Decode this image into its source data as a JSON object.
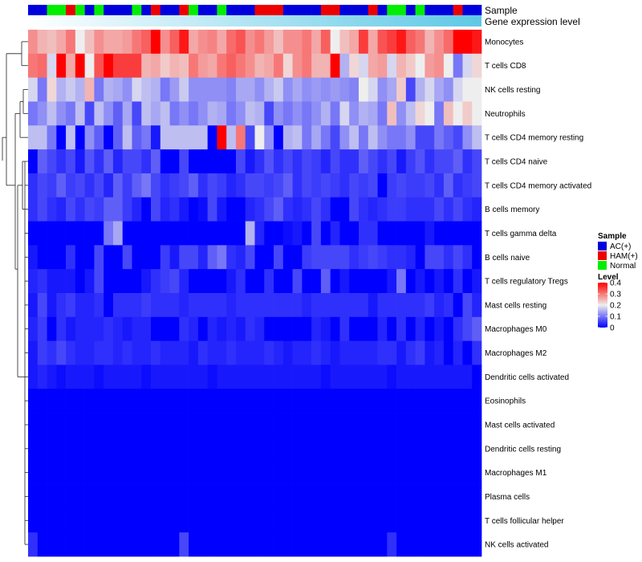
{
  "chart_data": {
    "type": "heatmap",
    "annotations": [
      {
        "name": "Sample"
      },
      {
        "name": "Gene expression level"
      }
    ],
    "sample_groups": [
      "AC(+)",
      "AC(+)",
      "Normal",
      "Normal",
      "HAM(+)",
      "Normal",
      "AC(+)",
      "Normal",
      "AC(+)",
      "AC(+)",
      "AC(+)",
      "Normal",
      "AC(+)",
      "HAM(+)",
      "AC(+)",
      "AC(+)",
      "HAM(+)",
      "Normal",
      "AC(+)",
      "AC(+)",
      "Normal",
      "AC(+)",
      "AC(+)",
      "AC(+)",
      "HAM(+)",
      "HAM(+)",
      "HAM(+)",
      "AC(+)",
      "AC(+)",
      "AC(+)",
      "AC(+)",
      "HAM(+)",
      "HAM(+)",
      "AC(+)",
      "AC(+)",
      "AC(+)",
      "HAM(+)",
      "AC(+)",
      "Normal",
      "Normal",
      "AC(+)",
      "Normal",
      "AC(+)",
      "AC(+)",
      "AC(+)",
      "HAM(+)",
      "AC(+)",
      "AC(+)"
    ],
    "rows": [
      {
        "name": "Monocytes",
        "values": [
          0.28,
          0.25,
          0.24,
          0.26,
          0.3,
          0.2,
          0.24,
          0.28,
          0.26,
          0.26,
          0.27,
          0.3,
          0.32,
          0.4,
          0.28,
          0.32,
          0.38,
          0.26,
          0.28,
          0.29,
          0.26,
          0.31,
          0.33,
          0.28,
          0.3,
          0.27,
          0.24,
          0.28,
          0.28,
          0.3,
          0.26,
          0.32,
          0.2,
          0.24,
          0.26,
          0.35,
          0.26,
          0.33,
          0.35,
          0.38,
          0.32,
          0.3,
          0.25,
          0.28,
          0.31,
          0.4,
          0.4,
          0.38
        ]
      },
      {
        "name": "T cells CD8",
        "values": [
          0.3,
          0.31,
          0.18,
          0.4,
          0.26,
          0.4,
          0.2,
          0.33,
          0.4,
          0.35,
          0.35,
          0.35,
          0.25,
          0.26,
          0.23,
          0.25,
          0.24,
          0.3,
          0.27,
          0.26,
          0.3,
          0.32,
          0.3,
          0.28,
          0.25,
          0.26,
          0.3,
          0.22,
          0.28,
          0.3,
          0.25,
          0.25,
          0.4,
          0.15,
          0.22,
          0.18,
          0.26,
          0.27,
          0.18,
          0.25,
          0.23,
          0.2,
          0.27,
          0.28,
          0.2,
          0.1,
          0.18,
          0.22
        ]
      },
      {
        "name": "NK cells resting",
        "values": [
          0.18,
          0.1,
          0.22,
          0.15,
          0.17,
          0.15,
          0.25,
          0.1,
          0.15,
          0.14,
          0.12,
          0.18,
          0.16,
          0.15,
          0.1,
          0.13,
          0.17,
          0.12,
          0.12,
          0.12,
          0.12,
          0.11,
          0.14,
          0.14,
          0.12,
          0.15,
          0.17,
          0.12,
          0.14,
          0.12,
          0.13,
          0.12,
          0.13,
          0.12,
          0.11,
          0.2,
          0.18,
          0.12,
          0.14,
          0.23,
          0.06,
          0.15,
          0.18,
          0.14,
          0.12,
          0.18,
          0.2,
          0.2
        ]
      },
      {
        "name": "Neutrophils",
        "values": [
          0.1,
          0.12,
          0.16,
          0.12,
          0.1,
          0.16,
          0.06,
          0.16,
          0.12,
          0.08,
          0.14,
          0.06,
          0.16,
          0.14,
          0.16,
          0.1,
          0.12,
          0.1,
          0.12,
          0.15,
          0.14,
          0.1,
          0.12,
          0.16,
          0.15,
          0.06,
          0.12,
          0.1,
          0.12,
          0.1,
          0.12,
          0.15,
          0.1,
          0.18,
          0.12,
          0.15,
          0.14,
          0.1,
          0.24,
          0.12,
          0.16,
          0.22,
          0.2,
          0.1,
          0.24,
          0.2,
          0.23,
          0.2
        ]
      },
      {
        "name": "T cells CD4 memory resting",
        "values": [
          0.16,
          0.16,
          0.1,
          0.0,
          0.16,
          0.0,
          0.12,
          0.08,
          0.0,
          0.08,
          0.16,
          0.08,
          0.1,
          0.02,
          0.16,
          0.16,
          0.16,
          0.16,
          0.16,
          0.0,
          0.4,
          0.16,
          0.3,
          0.06,
          0.2,
          0.12,
          0.0,
          0.15,
          0.16,
          0.1,
          0.14,
          0.1,
          0.06,
          0.12,
          0.16,
          0.1,
          0.16,
          0.12,
          0.1,
          0.1,
          0.12,
          0.06,
          0.06,
          0.1,
          0.08,
          0.06,
          0.12,
          0.16
        ]
      },
      {
        "name": "T cells CD4 naive",
        "values": [
          0.0,
          0.08,
          0.06,
          0.04,
          0.06,
          0.02,
          0.07,
          0.04,
          0.08,
          0.03,
          0.06,
          0.06,
          0.04,
          0.08,
          0.0,
          0.0,
          0.06,
          0.0,
          0.0,
          0.0,
          0.0,
          0.0,
          0.06,
          0.02,
          0.04,
          0.07,
          0.04,
          0.06,
          0.04,
          0.06,
          0.05,
          0.03,
          0.06,
          0.04,
          0.04,
          0.08,
          0.06,
          0.04,
          0.06,
          0.02,
          0.05,
          0.07,
          0.04,
          0.06,
          0.06,
          0.08,
          0.04,
          0.06
        ]
      },
      {
        "name": "T cells CD4 memory activated",
        "values": [
          0.04,
          0.06,
          0.05,
          0.08,
          0.05,
          0.06,
          0.04,
          0.06,
          0.03,
          0.08,
          0.05,
          0.08,
          0.1,
          0.06,
          0.04,
          0.05,
          0.06,
          0.08,
          0.04,
          0.06,
          0.05,
          0.03,
          0.04,
          0.06,
          0.06,
          0.05,
          0.06,
          0.08,
          0.04,
          0.06,
          0.05,
          0.06,
          0.05,
          0.04,
          0.06,
          0.05,
          0.06,
          0.0,
          0.05,
          0.06,
          0.05,
          0.05,
          0.06,
          0.04,
          0.08,
          0.04,
          0.05,
          0.06
        ]
      },
      {
        "name": "B cells memory",
        "values": [
          0.04,
          0.06,
          0.04,
          0.03,
          0.06,
          0.04,
          0.06,
          0.05,
          0.08,
          0.08,
          0.05,
          0.03,
          0.0,
          0.06,
          0.03,
          0.04,
          0.02,
          0.0,
          0.01,
          0.06,
          0.02,
          0.0,
          0.0,
          0.03,
          0.04,
          0.06,
          0.08,
          0.04,
          0.03,
          0.04,
          0.06,
          0.04,
          0.0,
          0.0,
          0.06,
          0.04,
          0.03,
          0.04,
          0.05,
          0.05,
          0.04,
          0.04,
          0.04,
          0.06,
          0.04,
          0.06,
          0.04,
          0.03
        ]
      },
      {
        "name": "T cells gamma delta",
        "values": [
          0.0,
          0.0,
          0.0,
          0.0,
          0.0,
          0.0,
          0.0,
          0.0,
          0.1,
          0.14,
          0.0,
          0.0,
          0.0,
          0.0,
          0.0,
          0.0,
          0.0,
          0.0,
          0.0,
          0.0,
          0.0,
          0.0,
          0.0,
          0.15,
          0.03,
          0.0,
          0.0,
          0.01,
          0.02,
          0.0,
          0.06,
          0.0,
          0.03,
          0.0,
          0.0,
          0.04,
          0.04,
          0.0,
          0.0,
          0.0,
          0.0,
          0.0,
          0.02,
          0.0,
          0.0,
          0.0,
          0.0,
          0.0
        ]
      },
      {
        "name": "B cells naive",
        "values": [
          0.02,
          0.0,
          0.0,
          0.0,
          0.04,
          0.0,
          0.0,
          0.06,
          0.0,
          0.0,
          0.06,
          0.0,
          0.0,
          0.0,
          0.05,
          0.02,
          0.06,
          0.06,
          0.03,
          0.08,
          0.1,
          0.04,
          0.03,
          0.06,
          0.0,
          0.0,
          0.06,
          0.0,
          0.0,
          0.05,
          0.06,
          0.06,
          0.06,
          0.06,
          0.04,
          0.05,
          0.06,
          0.05,
          0.04,
          0.04,
          0.03,
          0.0,
          0.06,
          0.06,
          0.04,
          0.06,
          0.04,
          0.0
        ]
      },
      {
        "name": "T cells regulatory  Tregs",
        "values": [
          0.03,
          0.04,
          0.02,
          0.02,
          0.02,
          0.0,
          0.02,
          0.06,
          0.0,
          0.0,
          0.0,
          0.0,
          0.02,
          0.04,
          0.05,
          0.06,
          0.03,
          0.0,
          0.0,
          0.0,
          0.0,
          0.02,
          0.04,
          0.0,
          0.0,
          0.04,
          0.0,
          0.0,
          0.06,
          0.0,
          0.0,
          0.08,
          0.0,
          0.02,
          0.0,
          0.0,
          0.0,
          0.0,
          0.02,
          0.1,
          0.0,
          0.02,
          0.0,
          0.02,
          0.0,
          0.04,
          0.0,
          0.02
        ]
      },
      {
        "name": "Mast cells resting",
        "values": [
          0.02,
          0.06,
          0.02,
          0.04,
          0.05,
          0.03,
          0.03,
          0.04,
          0.0,
          0.04,
          0.04,
          0.04,
          0.05,
          0.04,
          0.04,
          0.04,
          0.03,
          0.04,
          0.04,
          0.04,
          0.04,
          0.03,
          0.04,
          0.04,
          0.04,
          0.04,
          0.04,
          0.04,
          0.04,
          0.03,
          0.04,
          0.04,
          0.04,
          0.04,
          0.04,
          0.04,
          0.02,
          0.04,
          0.04,
          0.04,
          0.04,
          0.04,
          0.05,
          0.03,
          0.04,
          0.0,
          0.06,
          0.03
        ]
      },
      {
        "name": "Macrophages M0",
        "values": [
          0.03,
          0.05,
          0.0,
          0.04,
          0.02,
          0.03,
          0.03,
          0.03,
          0.04,
          0.03,
          0.02,
          0.03,
          0.03,
          0.0,
          0.0,
          0.0,
          0.04,
          0.03,
          0.0,
          0.03,
          0.02,
          0.03,
          0.02,
          0.04,
          0.03,
          0.0,
          0.0,
          0.0,
          0.0,
          0.0,
          0.03,
          0.02,
          0.0,
          0.04,
          0.0,
          0.0,
          0.0,
          0.03,
          0.0,
          0.04,
          0.0,
          0.03,
          0.0,
          0.02,
          0.0,
          0.04,
          0.06,
          0.08
        ]
      },
      {
        "name": "Macrophages M2",
        "values": [
          0.02,
          0.05,
          0.04,
          0.06,
          0.04,
          0.03,
          0.03,
          0.04,
          0.04,
          0.03,
          0.04,
          0.03,
          0.03,
          0.04,
          0.03,
          0.03,
          0.03,
          0.02,
          0.04,
          0.03,
          0.03,
          0.04,
          0.03,
          0.03,
          0.03,
          0.04,
          0.03,
          0.02,
          0.03,
          0.03,
          0.04,
          0.03,
          0.02,
          0.03,
          0.03,
          0.03,
          0.03,
          0.04,
          0.04,
          0.02,
          0.04,
          0.05,
          0.02,
          0.03,
          0.0,
          0.03,
          0.0,
          0.04
        ]
      },
      {
        "name": "Dendritic cells activated",
        "values": [
          0.02,
          0.03,
          0.02,
          0.01,
          0.02,
          0.02,
          0.02,
          0.01,
          0.02,
          0.02,
          0.02,
          0.02,
          0.01,
          0.02,
          0.02,
          0.02,
          0.02,
          0.02,
          0.02,
          0.01,
          0.02,
          0.02,
          0.02,
          0.02,
          0.02,
          0.02,
          0.02,
          0.02,
          0.02,
          0.02,
          0.02,
          0.01,
          0.02,
          0.02,
          0.02,
          0.02,
          0.02,
          0.02,
          0.01,
          0.02,
          0.02,
          0.02,
          0.02,
          0.02,
          0.02,
          0.02,
          0.02,
          0.0
        ]
      },
      {
        "name": "Eosinophils",
        "values": [
          0.0,
          0.0,
          0.0,
          0.0,
          0.0,
          0.0,
          0.0,
          0.0,
          0.0,
          0.0,
          0.0,
          0.0,
          0.0,
          0.0,
          0.0,
          0.0,
          0.0,
          0.0,
          0.0,
          0.0,
          0.0,
          0.0,
          0.0,
          0.0,
          0.0,
          0.0,
          0.0,
          0.0,
          0.0,
          0.0,
          0.0,
          0.0,
          0.0,
          0.0,
          0.0,
          0.0,
          0.0,
          0.0,
          0.0,
          0.0,
          0.0,
          0.0,
          0.0,
          0.0,
          0.0,
          0.0,
          0.0,
          0.0
        ]
      },
      {
        "name": "Mast cells activated",
        "values": [
          0.0,
          0.0,
          0.0,
          0.0,
          0.0,
          0.0,
          0.0,
          0.0,
          0.0,
          0.0,
          0.0,
          0.0,
          0.0,
          0.0,
          0.0,
          0.0,
          0.0,
          0.0,
          0.0,
          0.0,
          0.0,
          0.0,
          0.0,
          0.0,
          0.0,
          0.0,
          0.0,
          0.0,
          0.0,
          0.0,
          0.0,
          0.0,
          0.0,
          0.0,
          0.0,
          0.0,
          0.0,
          0.0,
          0.0,
          0.0,
          0.0,
          0.0,
          0.0,
          0.0,
          0.0,
          0.0,
          0.0,
          0.0
        ]
      },
      {
        "name": "Dendritic cells resting",
        "values": [
          0.0,
          0.0,
          0.0,
          0.0,
          0.0,
          0.0,
          0.0,
          0.0,
          0.0,
          0.0,
          0.0,
          0.0,
          0.0,
          0.0,
          0.0,
          0.0,
          0.0,
          0.0,
          0.0,
          0.0,
          0.0,
          0.0,
          0.0,
          0.0,
          0.0,
          0.0,
          0.0,
          0.0,
          0.0,
          0.0,
          0.0,
          0.0,
          0.0,
          0.0,
          0.0,
          0.0,
          0.0,
          0.0,
          0.0,
          0.0,
          0.0,
          0.0,
          0.0,
          0.0,
          0.0,
          0.0,
          0.0,
          0.0
        ]
      },
      {
        "name": "Macrophages M1",
        "values": [
          0.0,
          0.0,
          0.0,
          0.0,
          0.0,
          0.0,
          0.0,
          0.0,
          0.0,
          0.0,
          0.0,
          0.0,
          0.0,
          0.0,
          0.0,
          0.0,
          0.0,
          0.0,
          0.0,
          0.0,
          0.0,
          0.0,
          0.0,
          0.0,
          0.0,
          0.0,
          0.0,
          0.0,
          0.0,
          0.0,
          0.0,
          0.0,
          0.0,
          0.0,
          0.0,
          0.0,
          0.0,
          0.0,
          0.0,
          0.0,
          0.0,
          0.0,
          0.0,
          0.0,
          0.0,
          0.0,
          0.0,
          0.0
        ]
      },
      {
        "name": "Plasma cells",
        "values": [
          0.0,
          0.0,
          0.0,
          0.0,
          0.0,
          0.0,
          0.0,
          0.0,
          0.0,
          0.0,
          0.0,
          0.0,
          0.0,
          0.0,
          0.0,
          0.0,
          0.0,
          0.0,
          0.0,
          0.0,
          0.0,
          0.0,
          0.0,
          0.0,
          0.0,
          0.0,
          0.0,
          0.0,
          0.0,
          0.0,
          0.0,
          0.0,
          0.0,
          0.0,
          0.0,
          0.0,
          0.0,
          0.0,
          0.0,
          0.0,
          0.0,
          0.0,
          0.0,
          0.0,
          0.0,
          0.0,
          0.0,
          0.0
        ]
      },
      {
        "name": "T cells follicular helper",
        "values": [
          0.0,
          0.0,
          0.0,
          0.0,
          0.0,
          0.0,
          0.0,
          0.0,
          0.0,
          0.0,
          0.0,
          0.0,
          0.0,
          0.0,
          0.0,
          0.0,
          0.0,
          0.0,
          0.0,
          0.0,
          0.0,
          0.0,
          0.0,
          0.0,
          0.0,
          0.0,
          0.0,
          0.0,
          0.0,
          0.0,
          0.0,
          0.0,
          0.0,
          0.0,
          0.0,
          0.0,
          0.0,
          0.0,
          0.0,
          0.0,
          0.0,
          0.0,
          0.0,
          0.0,
          0.0,
          0.0,
          0.0,
          0.0
        ]
      },
      {
        "name": "NK cells activated",
        "values": [
          0.04,
          0.0,
          0.0,
          0.0,
          0.0,
          0.0,
          0.0,
          0.0,
          0.0,
          0.0,
          0.0,
          0.0,
          0.0,
          0.0,
          0.0,
          0.0,
          0.06,
          0.0,
          0.0,
          0.0,
          0.0,
          0.0,
          0.0,
          0.0,
          0.0,
          0.0,
          0.0,
          0.0,
          0.0,
          0.0,
          0.0,
          0.0,
          0.0,
          0.0,
          0.0,
          0.0,
          0.0,
          0.0,
          0.04,
          0.0,
          0.0,
          0.0,
          0.0,
          0.0,
          0.0,
          0.0,
          0.0,
          0.0
        ]
      }
    ],
    "legend_sample": {
      "title": "Sample",
      "entries": [
        {
          "label": "AC(+)",
          "color": "#0000dd"
        },
        {
          "label": "HAM(+)",
          "color": "#ee0000"
        },
        {
          "label": "Normal",
          "color": "#00ee00"
        }
      ]
    },
    "legend_level": {
      "title": "Level",
      "ticks": [
        "0.4",
        "0.3",
        "0.2",
        "0.1",
        "0"
      ],
      "tick_values": [
        0.4,
        0.3,
        0.2,
        0.1,
        0.0
      ],
      "range": [
        0,
        0.4
      ],
      "colors": {
        "low": "#0000ff",
        "mid": "#eeeeee",
        "high": "#ff0000"
      }
    }
  }
}
